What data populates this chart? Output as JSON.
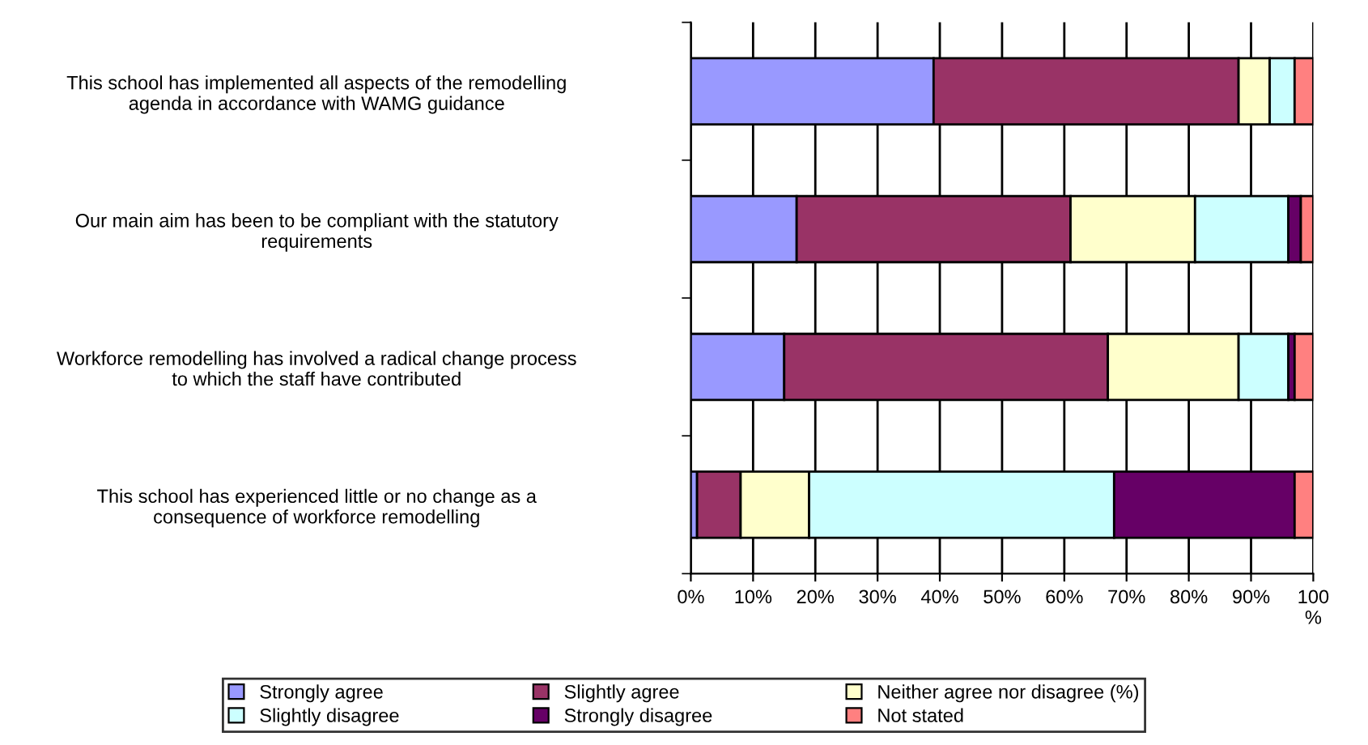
{
  "chart_data": {
    "type": "bar",
    "orientation": "horizontal",
    "stacked": true,
    "categories": [
      "This school has implemented all aspects of the remodelling\nagenda in accordance with WAMG guidance",
      "Our main aim has been to be compliant with the statutory\nrequirements",
      "Workforce remodelling has involved a radical change process\nto which the staff have contributed",
      "This school has experienced little or no change as a\nconsequence of workforce remodelling"
    ],
    "series": [
      {
        "name": "Strongly agree",
        "color": "#9999ff",
        "values": [
          39,
          17,
          15,
          1
        ]
      },
      {
        "name": "Slightly agree",
        "color": "#993366",
        "values": [
          49,
          44,
          52,
          7
        ]
      },
      {
        "name": "Neither agree nor disagree (%)",
        "color": "#ffffcc",
        "values": [
          5,
          20,
          21,
          11
        ]
      },
      {
        "name": "Slightly disagree",
        "color": "#ccffff",
        "values": [
          4,
          15,
          8,
          49
        ]
      },
      {
        "name": "Strongly disagree",
        "color": "#660066",
        "values": [
          0,
          2,
          1,
          29
        ]
      },
      {
        "name": "Not stated",
        "color": "#ff8080",
        "values": [
          3,
          2,
          3,
          3
        ]
      }
    ],
    "xlim": [
      0,
      100
    ],
    "xticks": [
      {
        "value": 0,
        "label": "0%"
      },
      {
        "value": 10,
        "label": "10%"
      },
      {
        "value": 20,
        "label": "20%"
      },
      {
        "value": 30,
        "label": "30%"
      },
      {
        "value": 40,
        "label": "40%"
      },
      {
        "value": 50,
        "label": "50%"
      },
      {
        "value": 60,
        "label": "60%"
      },
      {
        "value": 70,
        "label": "70%"
      },
      {
        "value": 80,
        "label": "80%"
      },
      {
        "value": 90,
        "label": "90%"
      },
      {
        "value": 100,
        "label": "100\n%"
      }
    ],
    "grid": "x",
    "legend": "bottom"
  }
}
